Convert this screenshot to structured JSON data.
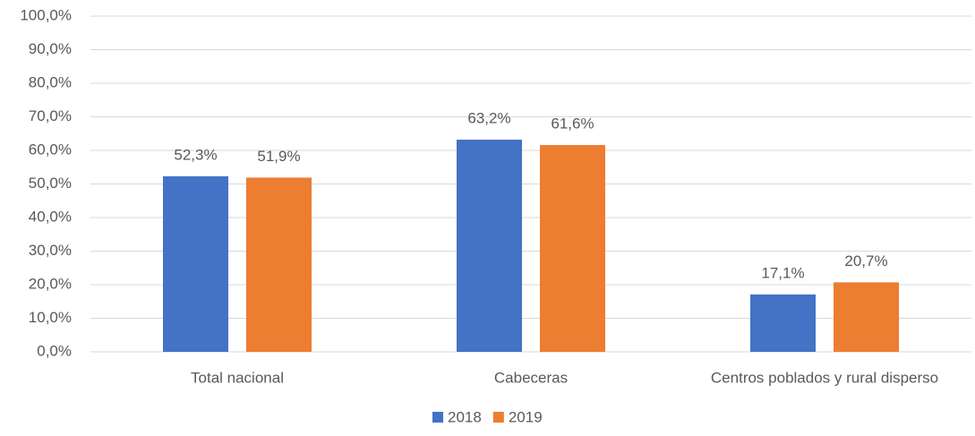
{
  "chart_data": {
    "type": "bar",
    "categories": [
      "Total nacional",
      "Cabeceras",
      "Centros poblados y rural disperso"
    ],
    "series": [
      {
        "name": "2018",
        "color": "#4472c4",
        "values": [
          52.3,
          63.2,
          17.1
        ],
        "value_labels": [
          "52,3%",
          "63,2%",
          "17,1%"
        ]
      },
      {
        "name": "2019",
        "color": "#ed7d31",
        "values": [
          51.9,
          61.6,
          20.7
        ],
        "value_labels": [
          "51,9%",
          "61,6%",
          "20,7%"
        ]
      }
    ],
    "ylim": [
      0,
      100
    ],
    "yticks": [
      {
        "value": 0,
        "label": "0,0%"
      },
      {
        "value": 10,
        "label": "10,0%"
      },
      {
        "value": 20,
        "label": "20,0%"
      },
      {
        "value": 30,
        "label": "30,0%"
      },
      {
        "value": 40,
        "label": "40,0%"
      },
      {
        "value": 50,
        "label": "50,0%"
      },
      {
        "value": 60,
        "label": "60,0%"
      },
      {
        "value": 70,
        "label": "70,0%"
      },
      {
        "value": 80,
        "label": "80,0%"
      },
      {
        "value": 90,
        "label": "90,0%"
      },
      {
        "value": 100,
        "label": "100,0%"
      }
    ],
    "grid": true,
    "legend": "bottom"
  }
}
